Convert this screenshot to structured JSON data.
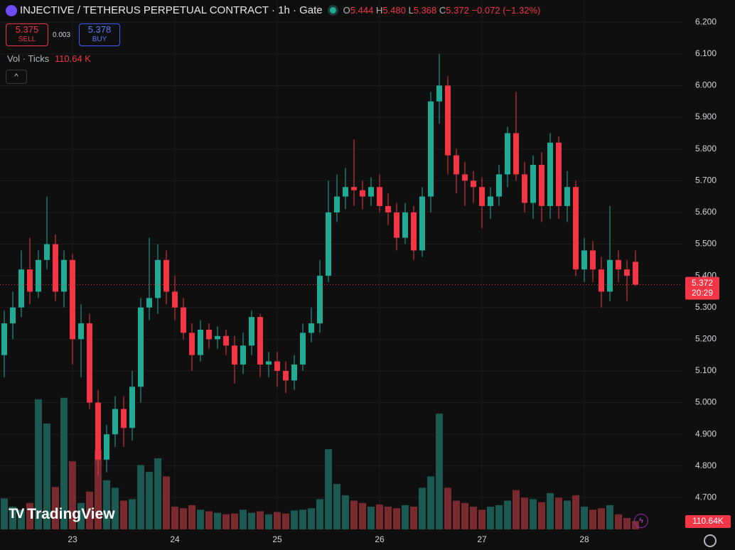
{
  "header": {
    "title": "INJECTIVE / TETHERUS PERPETUAL CONTRACT · 1h · Gate",
    "o": "O",
    "open": "5.444",
    "h": "H",
    "high": "5.480",
    "l": "L",
    "low": "5.368",
    "c": "C",
    "close": "5.372",
    "change": "−0.072 (−1.32%)",
    "sell_price": "5.375",
    "sell": "SELL",
    "spread": "0.003",
    "buy_price": "5.378",
    "buy": "BUY",
    "vol_label": "Vol · Ticks",
    "vol_value": "110.64 K",
    "logo": "TradingView"
  },
  "chart_data": {
    "type": "candlestick",
    "categories": [
      null,
      null,
      null,
      null,
      null,
      null,
      null,
      null,
      "23",
      null,
      null,
      null,
      null,
      null,
      null,
      null,
      null,
      null,
      null,
      null,
      "24",
      null,
      null,
      null,
      null,
      null,
      null,
      null,
      null,
      null,
      null,
      null,
      "25",
      null,
      null,
      null,
      null,
      null,
      null,
      null,
      null,
      null,
      null,
      null,
      "26",
      null,
      null,
      null,
      null,
      null,
      null,
      null,
      null,
      null,
      null,
      null,
      "27",
      null,
      null,
      null,
      null,
      null,
      null,
      null,
      null,
      null,
      null,
      null,
      "28",
      null,
      null,
      null,
      null,
      null,
      null
    ],
    "open": [
      5.15,
      5.25,
      5.3,
      5.42,
      5.35,
      5.45,
      5.5,
      5.35,
      5.45,
      5.2,
      5.25,
      5.0,
      4.82,
      4.9,
      4.98,
      4.92,
      5.05,
      5.3,
      5.33,
      5.45,
      5.35,
      5.3,
      5.22,
      5.15,
      5.23,
      5.2,
      5.21,
      5.18,
      5.12,
      5.18,
      5.27,
      5.12,
      5.13,
      5.1,
      5.07,
      5.12,
      5.22,
      5.25,
      5.4,
      5.6,
      5.65,
      5.68,
      5.67,
      5.65,
      5.68,
      5.62,
      5.6,
      5.52,
      5.6,
      5.48,
      5.65,
      5.95,
      6.0,
      5.78,
      5.72,
      5.7,
      5.68,
      5.62,
      5.65,
      5.72,
      5.85,
      5.72,
      5.63,
      5.75,
      5.62,
      5.82,
      5.62,
      5.68,
      5.42,
      5.48,
      5.42,
      5.35,
      5.45,
      5.42,
      5.444
    ],
    "high": [
      5.29,
      5.35,
      5.48,
      5.52,
      5.48,
      5.65,
      5.53,
      5.48,
      5.47,
      5.31,
      5.28,
      5.04,
      4.93,
      5.02,
      5.02,
      5.1,
      5.33,
      5.52,
      5.5,
      5.48,
      5.4,
      5.33,
      5.25,
      5.26,
      5.25,
      5.24,
      5.23,
      5.21,
      5.22,
      5.29,
      5.28,
      5.16,
      5.16,
      5.13,
      5.15,
      5.25,
      5.3,
      5.45,
      5.7,
      5.72,
      5.74,
      5.83,
      5.7,
      5.71,
      5.72,
      5.66,
      5.63,
      5.63,
      5.62,
      5.68,
      5.98,
      6.1,
      6.03,
      5.8,
      5.76,
      5.73,
      5.71,
      5.68,
      5.75,
      5.87,
      5.98,
      5.76,
      5.78,
      5.79,
      5.85,
      5.84,
      5.73,
      5.7,
      5.52,
      5.51,
      5.46,
      5.62,
      5.48,
      5.45,
      5.48
    ],
    "low": [
      5.08,
      5.2,
      5.27,
      5.31,
      5.33,
      5.42,
      5.32,
      5.3,
      5.12,
      5.08,
      4.98,
      4.77,
      4.78,
      4.86,
      4.86,
      4.88,
      5.0,
      5.26,
      5.28,
      5.31,
      5.26,
      5.2,
      5.1,
      5.13,
      5.17,
      5.17,
      5.15,
      5.06,
      5.09,
      5.15,
      5.08,
      5.08,
      5.05,
      5.03,
      5.04,
      5.1,
      5.19,
      5.22,
      5.38,
      5.57,
      5.61,
      5.62,
      5.61,
      5.62,
      5.6,
      5.56,
      5.48,
      5.5,
      5.45,
      5.46,
      5.6,
      5.88,
      5.72,
      5.66,
      5.62,
      5.63,
      5.55,
      5.58,
      5.62,
      5.68,
      5.7,
      5.6,
      5.58,
      5.57,
      5.58,
      5.58,
      5.57,
      5.4,
      5.38,
      5.38,
      5.3,
      5.32,
      5.38,
      5.32,
      5.368
    ],
    "close": [
      5.25,
      5.3,
      5.42,
      5.35,
      5.45,
      5.5,
      5.35,
      5.45,
      5.2,
      5.25,
      5.0,
      4.82,
      4.9,
      4.98,
      4.92,
      5.05,
      5.3,
      5.33,
      5.45,
      5.35,
      5.3,
      5.22,
      5.15,
      5.23,
      5.2,
      5.21,
      5.18,
      5.12,
      5.18,
      5.27,
      5.12,
      5.13,
      5.1,
      5.07,
      5.12,
      5.22,
      5.25,
      5.4,
      5.6,
      5.65,
      5.68,
      5.67,
      5.65,
      5.68,
      5.62,
      5.6,
      5.52,
      5.6,
      5.48,
      5.65,
      5.95,
      6.0,
      5.78,
      5.72,
      5.7,
      5.68,
      5.62,
      5.65,
      5.72,
      5.85,
      5.72,
      5.63,
      5.75,
      5.62,
      5.82,
      5.62,
      5.68,
      5.42,
      5.48,
      5.42,
      5.35,
      5.45,
      5.42,
      5.4,
      5.372
    ],
    "volume": [
      410,
      300,
      260,
      350,
      1720,
      1400,
      560,
      1740,
      900,
      350,
      500,
      1050,
      650,
      550,
      380,
      400,
      850,
      760,
      940,
      700,
      300,
      280,
      320,
      260,
      240,
      220,
      200,
      210,
      260,
      220,
      240,
      200,
      230,
      210,
      250,
      260,
      280,
      400,
      1060,
      600,
      450,
      380,
      350,
      300,
      330,
      300,
      280,
      320,
      300,
      550,
      700,
      1530,
      550,
      380,
      350,
      300,
      260,
      300,
      320,
      380,
      520,
      420,
      400,
      360,
      480,
      420,
      380,
      450,
      300,
      260,
      280,
      320,
      200,
      150,
      110.64
    ],
    "volume_ylim": [
      0,
      7000
    ],
    "price_label": "5.372",
    "countdown": "20:29",
    "volume_label": "110.64K",
    "ylim": [
      4.6,
      6.27
    ],
    "yticks": [
      {
        "value": 4.7,
        "label": "4.700"
      },
      {
        "value": 4.8,
        "label": "4.800"
      },
      {
        "value": 4.9,
        "label": "4.900"
      },
      {
        "value": 5.0,
        "label": "5.000"
      },
      {
        "value": 5.1,
        "label": "5.100"
      },
      {
        "value": 5.2,
        "label": "5.200"
      },
      {
        "value": 5.3,
        "label": "5.300"
      },
      {
        "value": 5.4,
        "label": "5.400"
      },
      {
        "value": 5.5,
        "label": "5.500"
      },
      {
        "value": 5.6,
        "label": "5.600"
      },
      {
        "value": 5.7,
        "label": "5.700"
      },
      {
        "value": 5.8,
        "label": "5.800"
      },
      {
        "value": 5.9,
        "label": "5.900"
      },
      {
        "value": 6.0,
        "label": "6.000"
      },
      {
        "value": 6.1,
        "label": "6.100"
      },
      {
        "value": 6.2,
        "label": "6.200"
      }
    ],
    "grid": true,
    "up_color": "#22ab94",
    "down_color": "#f23645",
    "up_volume_color": "#1b5a53",
    "down_volume_color": "#7a2a2f"
  }
}
